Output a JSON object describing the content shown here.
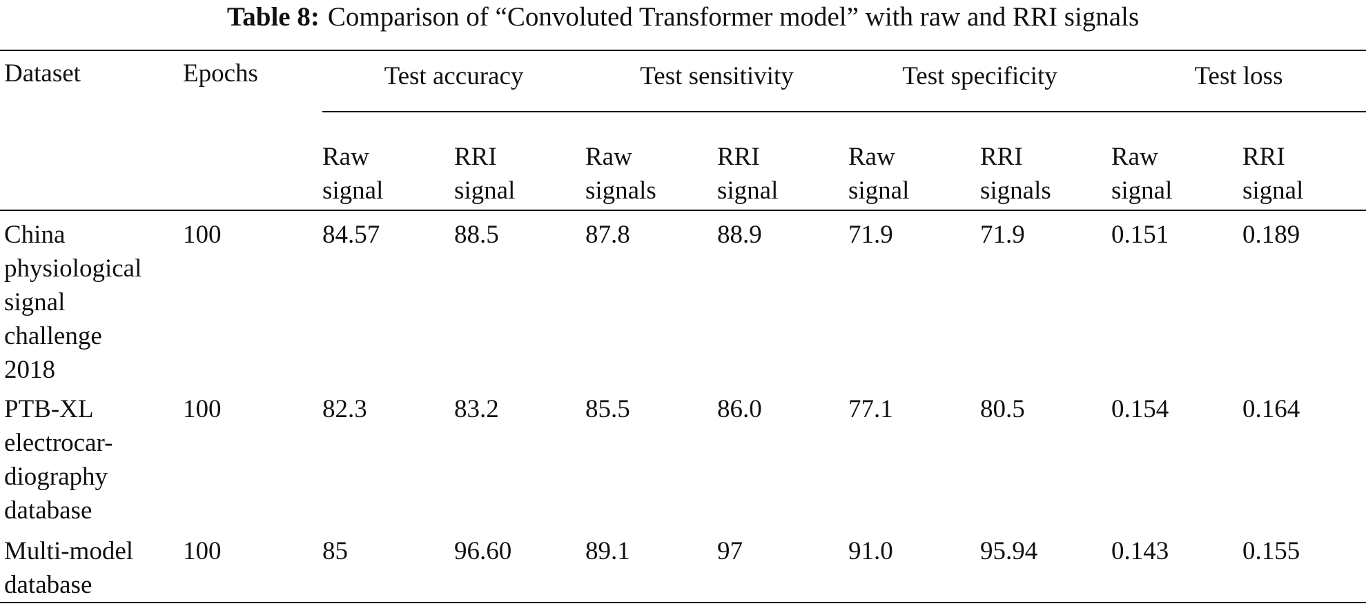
{
  "caption": {
    "label": "Table 8:",
    "text": "Comparison of “Convoluted Transformer model” with raw and RRI signals"
  },
  "table": {
    "headers": {
      "dataset": "Dataset",
      "epochs": "Epochs",
      "groups": [
        {
          "label": "Test accuracy",
          "sub": [
            {
              "line1": "Raw",
              "line2": "signal"
            },
            {
              "line1": "RRI",
              "line2": "signal"
            }
          ]
        },
        {
          "label": "Test sensitivity",
          "sub": [
            {
              "line1": "Raw",
              "line2": "signals"
            },
            {
              "line1": "RRI",
              "line2": "signal"
            }
          ]
        },
        {
          "label": "Test specificity",
          "sub": [
            {
              "line1": "Raw",
              "line2": "signal"
            },
            {
              "line1": "RRI",
              "line2": "signals"
            }
          ]
        },
        {
          "label": "Test loss",
          "sub": [
            {
              "line1": "Raw",
              "line2": "signal"
            },
            {
              "line1": "RRI",
              "line2": "signal"
            }
          ]
        }
      ]
    },
    "rows": [
      {
        "dataset_lines": [
          "China",
          "physiological",
          "signal",
          "challenge",
          "2018"
        ],
        "epochs": "100",
        "values": [
          "84.57",
          "88.5",
          "87.8",
          "88.9",
          "71.9",
          "71.9",
          "0.151",
          "0.189"
        ]
      },
      {
        "dataset_lines": [
          "PTB-XL",
          "electrocar-",
          "diography",
          "database"
        ],
        "epochs": "100",
        "values": [
          "82.3",
          "83.2",
          "85.5",
          "86.0",
          "77.1",
          "80.5",
          "0.154",
          "0.164"
        ]
      },
      {
        "dataset_lines": [
          "Multi-model",
          "database"
        ],
        "epochs": "100",
        "values": [
          "85",
          "96.60",
          "89.1",
          "97",
          "91.0",
          "95.94",
          "0.143",
          "0.155"
        ]
      }
    ]
  }
}
